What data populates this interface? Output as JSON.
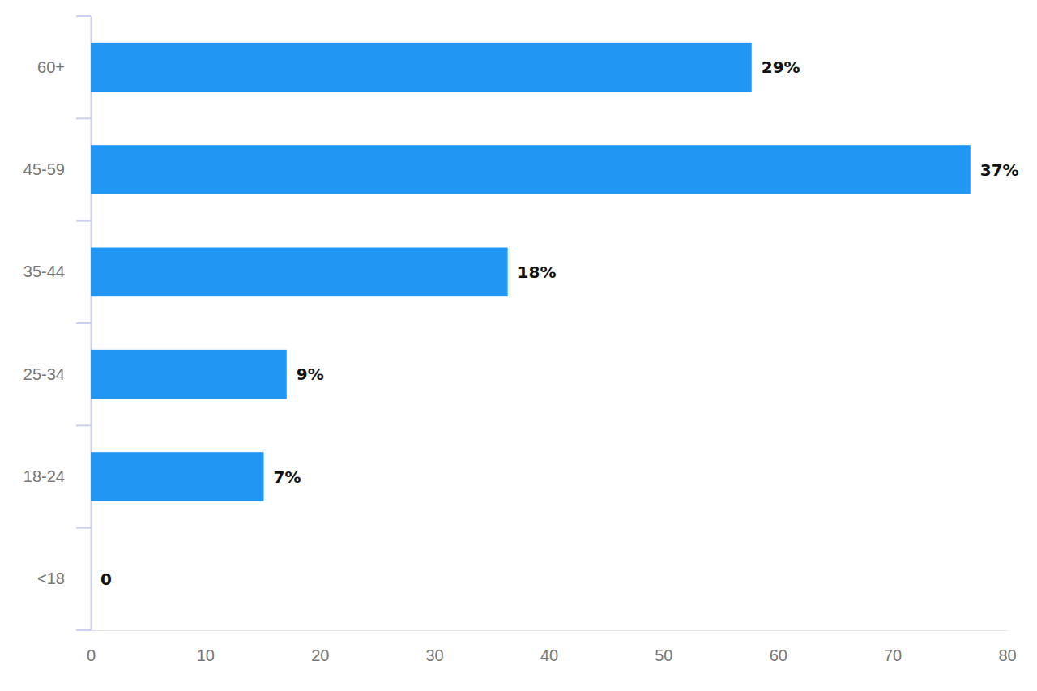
{
  "chart_data": {
    "type": "bar",
    "orientation": "horizontal",
    "categories": [
      "60+",
      "45-59",
      "35-44",
      "25-34",
      "18-24",
      "<18"
    ],
    "values": [
      57.7,
      76.8,
      36.4,
      17.1,
      15.1,
      0
    ],
    "share_labels": [
      "29%",
      "37%",
      "18%",
      "9%",
      "7%",
      "0"
    ],
    "color": "#2196f3",
    "xlim": [
      0,
      80
    ],
    "xticks": [
      0,
      10,
      20,
      30,
      40,
      50,
      60,
      70,
      80
    ],
    "data_labels": true,
    "grid": false
  }
}
